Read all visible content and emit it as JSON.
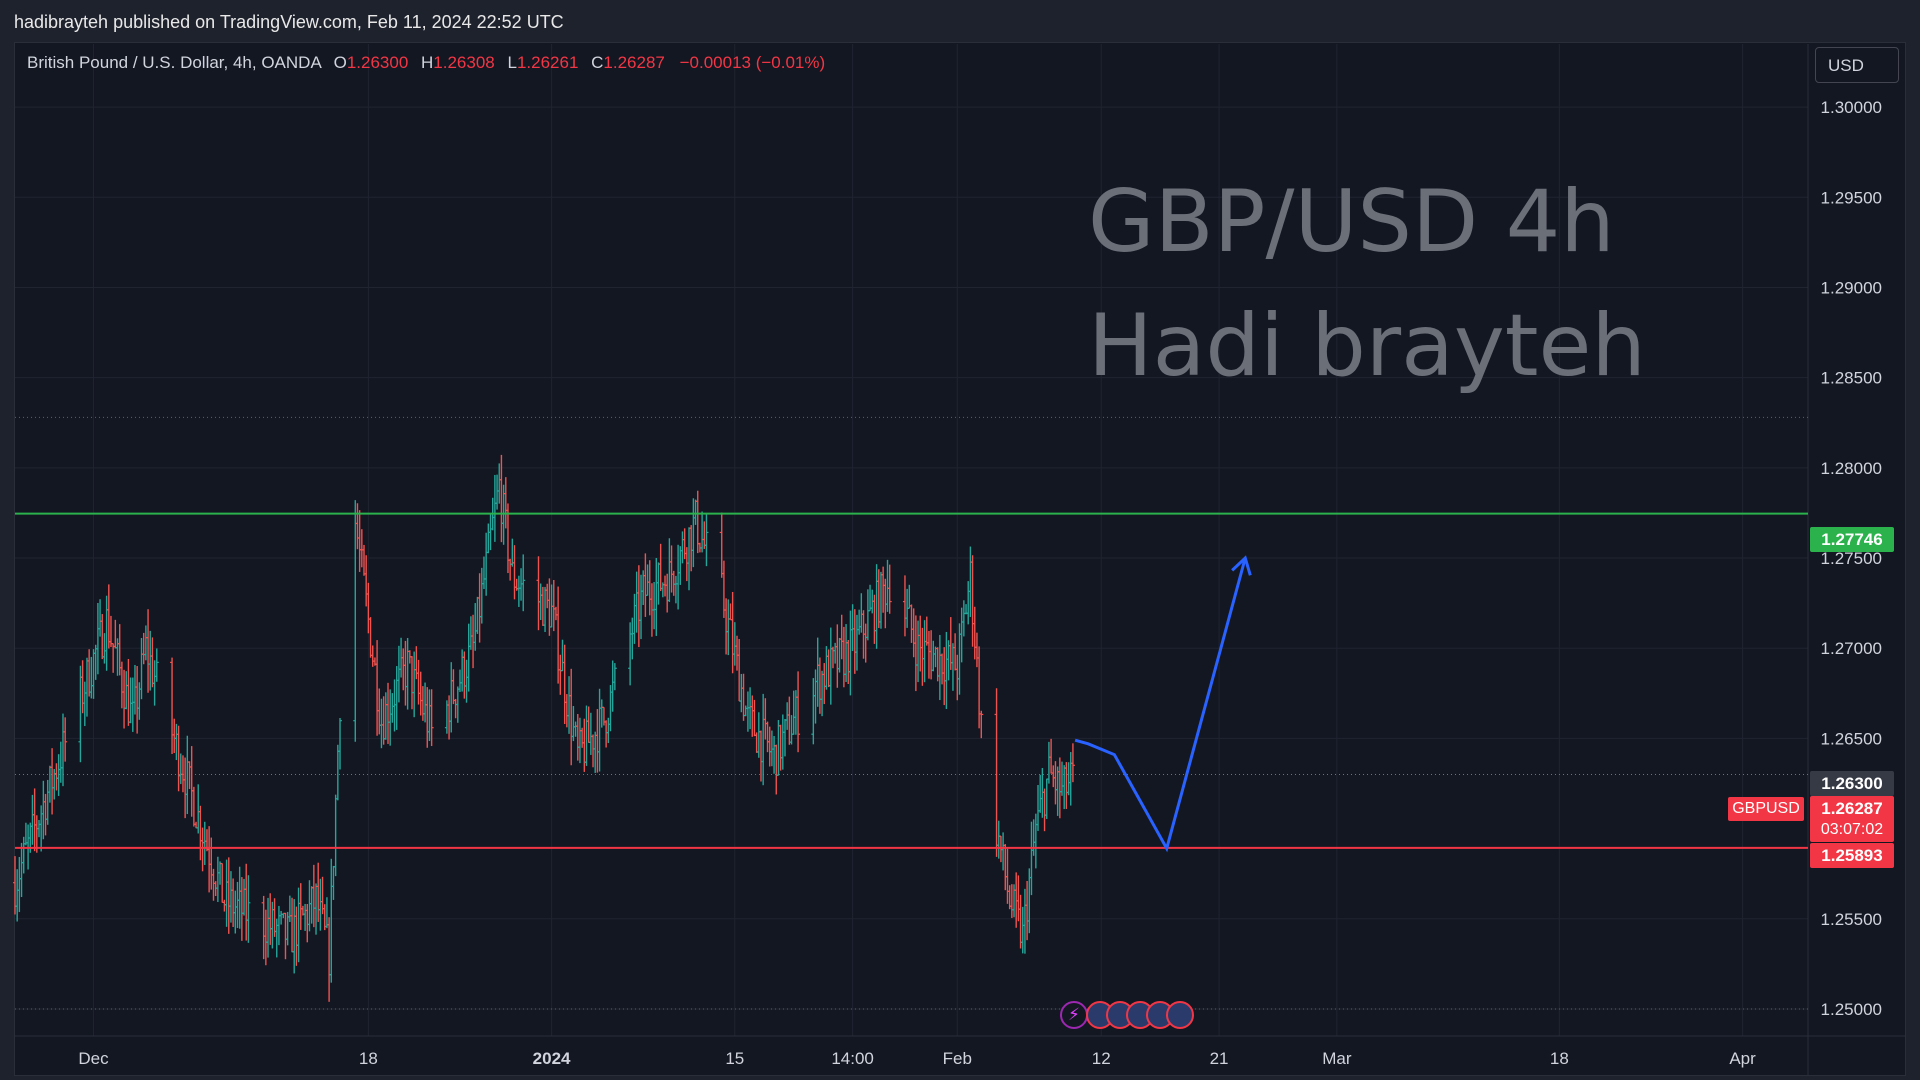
{
  "header": {
    "published": "hadibrayteh published on TradingView.com, Feb 11, 2024 22:52 UTC"
  },
  "legend": {
    "symbol": "British Pound / U.S. Dollar, 4h, OANDA",
    "o_label": "O",
    "o": "1.26300",
    "h_label": "H",
    "h": "1.26308",
    "l_label": "L",
    "l": "1.26261",
    "c_label": "C",
    "c": "1.26287",
    "change": "−0.00013 (−0.01%)"
  },
  "currency_button": "USD",
  "watermark": {
    "line1": "GBP/USD 4h",
    "line2": "Hadi brayteh"
  },
  "price_scale": {
    "ticks": [
      "1.30000",
      "1.29500",
      "1.29000",
      "1.28500",
      "1.28000",
      "1.27500",
      "1.27000",
      "1.26500",
      "1.25500",
      "1.25000"
    ],
    "resistance": "1.27746",
    "open_price": "1.26300",
    "current_price": "1.26287",
    "countdown": "03:07:02",
    "support": "1.25893",
    "symbol_tag": "GBPUSD"
  },
  "time_axis": {
    "labels": [
      "Dec",
      "18",
      "2024",
      "15",
      "14:00",
      "Feb",
      "12",
      "21",
      "Mar",
      "18",
      "Apr"
    ]
  },
  "colors": {
    "background": "#131722",
    "up": "#26a69a",
    "down": "#ef5350",
    "resistance_line": "#2bb24c",
    "support_line": "#f23645",
    "projection": "#2962ff"
  },
  "icons": [
    "lightning-event-icon",
    "uk-flag-event-icon"
  ],
  "chart_data": {
    "type": "ohlc",
    "instrument": "GBPUSD",
    "timeframe": "4h",
    "y_range": [
      1.2485,
      1.3035
    ],
    "x_range": [
      "2023-11-21",
      "2024-04-06"
    ],
    "levels": [
      {
        "label": "resistance",
        "price": 1.27746
      },
      {
        "label": "support",
        "price": 1.25893
      },
      {
        "label": "open",
        "price": 1.263
      }
    ],
    "high_marker": 1.2828,
    "low_marker": 1.25,
    "swing_path": [
      {
        "date": "2024-02-10",
        "price": 1.2649
      },
      {
        "date": "2024-02-11",
        "price": 1.2647
      },
      {
        "date": "2024-02-13",
        "price": 1.2641
      },
      {
        "date": "2024-02-17",
        "price": 1.2589
      },
      {
        "date": "2024-02-23",
        "price": 1.275
      }
    ],
    "price_anchors": [
      {
        "date": "2023-11-21",
        "price": 1.257
      },
      {
        "date": "2023-11-24",
        "price": 1.263
      },
      {
        "date": "2023-11-28",
        "price": 1.2715
      },
      {
        "date": "2023-11-30",
        "price": 1.266
      },
      {
        "date": "2023-12-01",
        "price": 1.27
      },
      {
        "date": "2023-12-04",
        "price": 1.263
      },
      {
        "date": "2023-12-07",
        "price": 1.256
      },
      {
        "date": "2023-12-12",
        "price": 1.254
      },
      {
        "date": "2023-12-14",
        "price": 1.256
      },
      {
        "date": "2023-12-15",
        "price": 1.253
      },
      {
        "date": "2023-12-16",
        "price": 1.27
      },
      {
        "date": "2023-12-17",
        "price": 1.277
      },
      {
        "date": "2023-12-19",
        "price": 1.266
      },
      {
        "date": "2023-12-21",
        "price": 1.269
      },
      {
        "date": "2023-12-23",
        "price": 1.265
      },
      {
        "date": "2023-12-26",
        "price": 1.27
      },
      {
        "date": "2023-12-28",
        "price": 1.279
      },
      {
        "date": "2023-12-29",
        "price": 1.274
      },
      {
        "date": "2024-01-01",
        "price": 1.272
      },
      {
        "date": "2024-01-03",
        "price": 1.264
      },
      {
        "date": "2024-01-05",
        "price": 1.266
      },
      {
        "date": "2024-01-08",
        "price": 1.273
      },
      {
        "date": "2024-01-10",
        "price": 1.274
      },
      {
        "date": "2024-01-12",
        "price": 1.277
      },
      {
        "date": "2024-01-14",
        "price": 1.273
      },
      {
        "date": "2024-01-16",
        "price": 1.266
      },
      {
        "date": "2024-01-18",
        "price": 1.264
      },
      {
        "date": "2024-01-21",
        "price": 1.268
      },
      {
        "date": "2024-01-24",
        "price": 1.27
      },
      {
        "date": "2024-01-27",
        "price": 1.274
      },
      {
        "date": "2024-01-29",
        "price": 1.27
      },
      {
        "date": "2024-02-01",
        "price": 1.269
      },
      {
        "date": "2024-02-02",
        "price": 1.274
      },
      {
        "date": "2024-02-03",
        "price": 1.264
      },
      {
        "date": "2024-02-05",
        "price": 1.256
      },
      {
        "date": "2024-02-06",
        "price": 1.254
      },
      {
        "date": "2024-02-07",
        "price": 1.26
      },
      {
        "date": "2024-02-08",
        "price": 1.263
      },
      {
        "date": "2024-02-09",
        "price": 1.262
      },
      {
        "date": "2024-02-10",
        "price": 1.2629
      }
    ]
  }
}
